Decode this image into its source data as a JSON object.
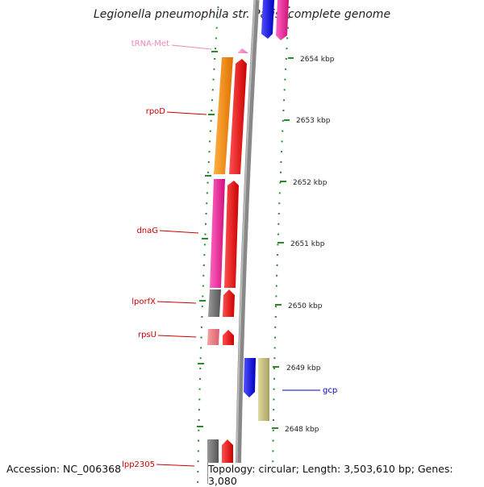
{
  "title": "Legionella pneumophila str. Paris, complete genome",
  "accession": "Accession: NC_006368",
  "topology": "Topology: circular; Length: 3,503,610 bp; Genes: 3,080",
  "colors": {
    "label_red": "#cc0000",
    "label_blue": "#0000cc",
    "label_pink": "#ee88bb",
    "tick_green": "#2a8a2a",
    "backbone": "#888888"
  },
  "scale_labels": [
    {
      "kbp": 2654,
      "text": "2654 kbp"
    },
    {
      "kbp": 2653,
      "text": "2653 kbp"
    },
    {
      "kbp": 2652,
      "text": "2652 kbp"
    },
    {
      "kbp": 2651,
      "text": "2651 kbp"
    },
    {
      "kbp": 2650,
      "text": "2650 kbp"
    },
    {
      "kbp": 2649,
      "text": "2649 kbp"
    },
    {
      "kbp": 2648,
      "text": "2648 kbp"
    }
  ],
  "gene_labels": [
    {
      "text": "tRNA-Met",
      "color": "#ee88bb"
    },
    {
      "text": "rpoD",
      "color": "#cc0000"
    },
    {
      "text": "dnaG",
      "color": "#cc0000"
    },
    {
      "text": "lporfX",
      "color": "#cc0000"
    },
    {
      "text": "rpsU",
      "color": "#cc0000"
    },
    {
      "text": "gcp",
      "color": "#0000cc"
    },
    {
      "text": "lpp2305",
      "color": "#cc0000"
    }
  ]
}
